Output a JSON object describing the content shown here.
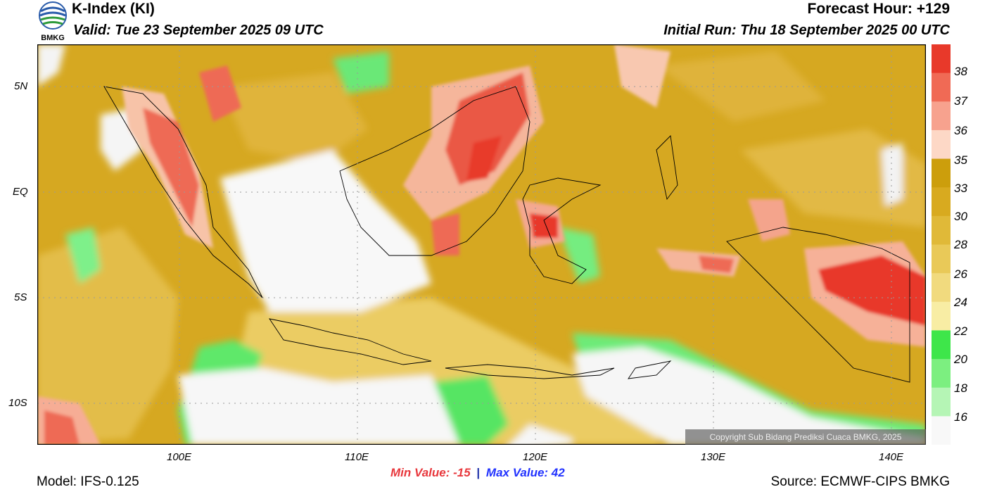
{
  "header": {
    "title": "K-Index (KI)",
    "valid": "Valid: Tue 23 September 2025 09 UTC",
    "forecast_hour": "Forecast Hour: +129",
    "initial_run": "Initial Run: Thu 18 September 2025 00 UTC"
  },
  "logo": {
    "text": "BMKG",
    "icon": "bmkg-logo-icon"
  },
  "map": {
    "lat_labels": [
      "5N",
      "EQ",
      "5S",
      "10S"
    ],
    "lon_labels": [
      "100E",
      "110E",
      "120E",
      "130E",
      "140E"
    ],
    "copyright": "Copyright Sub Bidang Prediksi Cuaca BMKG, 2025"
  },
  "colorbar": {
    "labels": [
      "38",
      "37",
      "36",
      "35",
      "33",
      "30",
      "28",
      "26",
      "24",
      "22",
      "20",
      "18",
      "16"
    ],
    "colors": [
      "#e8392a",
      "#f06a55",
      "#f7a28e",
      "#fdd8c6",
      "#cc9e0c",
      "#d8aa1f",
      "#e0b938",
      "#e9c958",
      "#f1da7e",
      "#f8eda4",
      "#3ee64a",
      "#7cef80",
      "#b5f5b5",
      "#f8f8f8"
    ]
  },
  "stats": {
    "min_label": "Min Value: -15",
    "separator": "|",
    "max_label": "Max Value:  42"
  },
  "footer": {
    "model": "Model: IFS-0.125",
    "source": "Source: ECMWF-CIPS BMKG"
  }
}
